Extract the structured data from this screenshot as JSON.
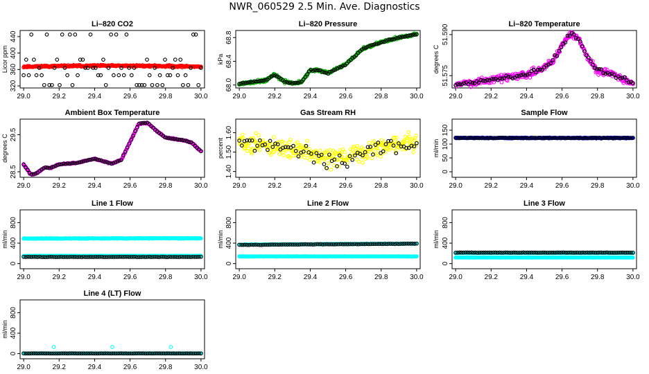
{
  "page": {
    "title": "NWR_060529  2.5 Min. Ave. Diagnostics"
  },
  "chart_data": [
    {
      "type": "scatter",
      "title": "Li–820 CO2",
      "ylabel": "Licor ppm",
      "xlim": [
        28.98,
        30.02
      ],
      "ylim": [
        315,
        455
      ],
      "xticks": [
        "29.0",
        "29.2",
        "29.4",
        "29.6",
        "29.8",
        "30.0"
      ],
      "yticks": [
        "320",
        "360",
        "400",
        "440"
      ],
      "series": [
        {
          "color": "#ff0000",
          "gen": {
            "kind": "band",
            "n": 320,
            "y0": 367,
            "y1": 367,
            "noise": 2,
            "seed": 11,
            "hump": 2
          }
        },
        {
          "color": "#000000",
          "gen": {
            "kind": "levels",
            "n": 70,
            "levels": [
              322,
              346,
              364,
              384,
              445
            ],
            "seed": 5
          }
        }
      ]
    },
    {
      "type": "scatter",
      "title": "Li–820 Pressure",
      "ylabel": "kPa",
      "xlim": [
        28.98,
        30.02
      ],
      "ylim": [
        67.95,
        68.92
      ],
      "xticks": [
        "29.0",
        "29.2",
        "29.4",
        "29.6",
        "29.8",
        "30.0"
      ],
      "yticks": [
        "68.0",
        "68.4",
        "68.8"
      ],
      "series": [
        {
          "color": "#00bb00",
          "gen": {
            "kind": "path",
            "n": 340,
            "pts": [
              [
                29.0,
                68.02
              ],
              [
                29.15,
                68.08
              ],
              [
                29.2,
                68.18
              ],
              [
                29.25,
                68.06
              ],
              [
                29.3,
                68.03
              ],
              [
                29.35,
                68.05
              ],
              [
                29.4,
                68.25
              ],
              [
                29.45,
                68.25
              ],
              [
                29.5,
                68.2
              ],
              [
                29.6,
                68.35
              ],
              [
                29.7,
                68.62
              ],
              [
                29.8,
                68.72
              ],
              [
                29.9,
                68.8
              ],
              [
                30.0,
                68.86
              ]
            ],
            "noise": 0.02,
            "seed": 21
          }
        },
        {
          "color": "#000000",
          "gen": {
            "kind": "path",
            "n": 95,
            "pts": [
              [
                29.0,
                68.02
              ],
              [
                29.15,
                68.08
              ],
              [
                29.2,
                68.18
              ],
              [
                29.25,
                68.06
              ],
              [
                29.3,
                68.03
              ],
              [
                29.35,
                68.05
              ],
              [
                29.4,
                68.25
              ],
              [
                29.45,
                68.25
              ],
              [
                29.5,
                68.2
              ],
              [
                29.6,
                68.35
              ],
              [
                29.7,
                68.62
              ],
              [
                29.8,
                68.72
              ],
              [
                29.9,
                68.8
              ],
              [
                30.0,
                68.86
              ]
            ],
            "noise": 0.01,
            "seed": 22
          }
        }
      ]
    },
    {
      "type": "scatter",
      "title": "Li–820 Temperature",
      "ylabel": "degrees C",
      "xlim": [
        28.98,
        30.02
      ],
      "ylim": [
        51.5705,
        51.5915
      ],
      "xticks": [
        "29.0",
        "29.2",
        "29.4",
        "29.6",
        "29.8",
        "30.0"
      ],
      "yticks": [
        "51.575",
        "51.590"
      ],
      "series": [
        {
          "color": "#ff00ff",
          "gen": {
            "kind": "path",
            "n": 340,
            "pts": [
              [
                29.0,
                51.5715
              ],
              [
                29.2,
                51.5735
              ],
              [
                29.4,
                51.5755
              ],
              [
                29.5,
                51.578
              ],
              [
                29.55,
                51.5805
              ],
              [
                29.6,
                51.586
              ],
              [
                29.65,
                51.5905
              ],
              [
                29.7,
                51.588
              ],
              [
                29.75,
                51.581
              ],
              [
                29.8,
                51.577
              ],
              [
                29.9,
                51.575
              ],
              [
                30.0,
                51.572
              ]
            ],
            "noise": 0.0012,
            "seed": 31
          }
        },
        {
          "color": "#000000",
          "gen": {
            "kind": "path",
            "n": 85,
            "pts": [
              [
                29.0,
                51.5715
              ],
              [
                29.2,
                51.5735
              ],
              [
                29.4,
                51.5755
              ],
              [
                29.5,
                51.578
              ],
              [
                29.55,
                51.5805
              ],
              [
                29.6,
                51.586
              ],
              [
                29.65,
                51.5905
              ],
              [
                29.7,
                51.588
              ],
              [
                29.75,
                51.581
              ],
              [
                29.8,
                51.577
              ],
              [
                29.9,
                51.575
              ],
              [
                30.0,
                51.572
              ]
            ],
            "noise": 0.0008,
            "seed": 32
          }
        }
      ]
    },
    {
      "type": "scatter",
      "title": "Ambient Box Temperature",
      "ylabel": "degrees C",
      "xlim": [
        28.98,
        30.02
      ],
      "ylim": [
        28.35,
        29.92
      ],
      "xticks": [
        "29.0",
        "29.2",
        "29.4",
        "29.6",
        "29.8",
        "30.0"
      ],
      "yticks": [
        "28.5",
        "29.5"
      ],
      "series": [
        {
          "color": "#ff00ff",
          "gen": {
            "kind": "path",
            "n": 340,
            "pts": [
              [
                29.0,
                28.7
              ],
              [
                29.04,
                28.42
              ],
              [
                29.07,
                28.45
              ],
              [
                29.12,
                28.62
              ],
              [
                29.15,
                28.6
              ],
              [
                29.2,
                28.7
              ],
              [
                29.3,
                28.74
              ],
              [
                29.4,
                28.85
              ],
              [
                29.45,
                28.78
              ],
              [
                29.5,
                28.72
              ],
              [
                29.55,
                28.82
              ],
              [
                29.6,
                29.3
              ],
              [
                29.65,
                29.8
              ],
              [
                29.7,
                29.82
              ],
              [
                29.75,
                29.6
              ],
              [
                29.8,
                29.42
              ],
              [
                29.9,
                29.35
              ],
              [
                29.95,
                29.28
              ],
              [
                30.0,
                29.05
              ]
            ],
            "noise": 0.015,
            "seed": 41
          }
        },
        {
          "color": "#000000",
          "gen": {
            "kind": "path",
            "n": 90,
            "pts": [
              [
                29.0,
                28.7
              ],
              [
                29.04,
                28.42
              ],
              [
                29.07,
                28.45
              ],
              [
                29.12,
                28.62
              ],
              [
                29.15,
                28.6
              ],
              [
                29.2,
                28.7
              ],
              [
                29.3,
                28.74
              ],
              [
                29.4,
                28.85
              ],
              [
                29.45,
                28.78
              ],
              [
                29.5,
                28.72
              ],
              [
                29.55,
                28.82
              ],
              [
                29.6,
                29.3
              ],
              [
                29.65,
                29.8
              ],
              [
                29.7,
                29.82
              ],
              [
                29.75,
                29.6
              ],
              [
                29.8,
                29.42
              ],
              [
                29.9,
                29.35
              ],
              [
                29.95,
                29.28
              ],
              [
                30.0,
                29.05
              ]
            ],
            "noise": 0.008,
            "seed": 42
          }
        }
      ]
    },
    {
      "type": "scatter",
      "title": "Gas Stream RH",
      "ylabel": "percent",
      "xlim": [
        28.98,
        30.02
      ],
      "ylim": [
        1.37,
        1.67
      ],
      "xticks": [
        "29.0",
        "29.2",
        "29.4",
        "29.6",
        "29.8",
        "30.0"
      ],
      "yticks": [
        "1.40",
        "1.50",
        "1.60"
      ],
      "series": [
        {
          "color": "#ffff00",
          "gen": {
            "kind": "path",
            "n": 330,
            "pts": [
              [
                29.0,
                1.55
              ],
              [
                29.2,
                1.53
              ],
              [
                29.4,
                1.5
              ],
              [
                29.5,
                1.46
              ],
              [
                29.6,
                1.47
              ],
              [
                29.8,
                1.53
              ],
              [
                30.0,
                1.55
              ]
            ],
            "noise": 0.045,
            "seed": 51
          }
        },
        {
          "color": "#000000",
          "gen": {
            "kind": "path",
            "n": 70,
            "pts": [
              [
                29.0,
                1.55
              ],
              [
                29.2,
                1.53
              ],
              [
                29.4,
                1.5
              ],
              [
                29.5,
                1.46
              ],
              [
                29.6,
                1.47
              ],
              [
                29.8,
                1.53
              ],
              [
                30.0,
                1.55
              ]
            ],
            "noise": 0.04,
            "seed": 52
          }
        }
      ]
    },
    {
      "type": "scatter",
      "title": "Sample Flow",
      "ylabel": "ml/min",
      "xlim": [
        28.98,
        30.02
      ],
      "ylim": [
        -20,
        190
      ],
      "xticks": [
        "29.0",
        "29.2",
        "29.4",
        "29.6",
        "29.8",
        "30.0"
      ],
      "yticks": [
        "0",
        "50",
        "100",
        "150"
      ],
      "series": [
        {
          "color": "#0000ff",
          "gen": {
            "kind": "band",
            "n": 320,
            "y0": 122,
            "y1": 122,
            "noise": 1.5,
            "seed": 61,
            "hump": 0
          }
        },
        {
          "color": "#000000",
          "gen": {
            "kind": "band",
            "n": 90,
            "y0": 122,
            "y1": 122,
            "noise": 1,
            "seed": 62,
            "hump": 0
          }
        }
      ]
    },
    {
      "type": "scatter",
      "title": "Line 1 Flow",
      "ylabel": "ml/min",
      "xlim": [
        28.98,
        30.02
      ],
      "ylim": [
        -100,
        1050
      ],
      "xticks": [
        "29.0",
        "29.2",
        "29.4",
        "29.6",
        "29.8",
        "30.0"
      ],
      "yticks": [
        "0",
        "400",
        "800"
      ],
      "series": [
        {
          "color": "#00ffff",
          "gen": {
            "kind": "band",
            "n": 320,
            "y0": 490,
            "y1": 495,
            "noise": 6,
            "seed": 71,
            "hump": 0
          }
        },
        {
          "color": "#00ffff",
          "gen": {
            "kind": "band",
            "n": 320,
            "y0": 150,
            "y1": 150,
            "noise": 4,
            "seed": 72,
            "hump": 0
          }
        },
        {
          "color": "#000000",
          "gen": {
            "kind": "band",
            "n": 90,
            "y0": 130,
            "y1": 130,
            "noise": 3,
            "seed": 73,
            "hump": 0
          }
        }
      ]
    },
    {
      "type": "scatter",
      "title": "Line 2 Flow",
      "ylabel": "ml/min",
      "xlim": [
        28.98,
        30.02
      ],
      "ylim": [
        -100,
        1050
      ],
      "xticks": [
        "29.0",
        "29.2",
        "29.4",
        "29.6",
        "29.8",
        "30.0"
      ],
      "yticks": [
        "0",
        "400",
        "800"
      ],
      "series": [
        {
          "color": "#00ffff",
          "gen": {
            "kind": "band",
            "n": 320,
            "y0": 370,
            "y1": 390,
            "noise": 5,
            "seed": 81,
            "hump": 0
          }
        },
        {
          "color": "#00ffff",
          "gen": {
            "kind": "band",
            "n": 320,
            "y0": 140,
            "y1": 140,
            "noise": 3,
            "seed": 82,
            "hump": 0
          }
        },
        {
          "color": "#000000",
          "gen": {
            "kind": "band",
            "n": 90,
            "y0": 365,
            "y1": 390,
            "noise": 4,
            "seed": 83,
            "hump": 0
          }
        }
      ]
    },
    {
      "type": "scatter",
      "title": "Line 3 Flow",
      "ylabel": "ml/min",
      "xlim": [
        28.98,
        30.02
      ],
      "ylim": [
        -100,
        1050
      ],
      "xticks": [
        "29.0",
        "29.2",
        "29.4",
        "29.6",
        "29.8",
        "30.0"
      ],
      "yticks": [
        "0",
        "400",
        "800"
      ],
      "series": [
        {
          "color": "#00ffff",
          "gen": {
            "kind": "band",
            "n": 320,
            "y0": 210,
            "y1": 210,
            "noise": 4,
            "seed": 91,
            "hump": 0
          }
        },
        {
          "color": "#00ffff",
          "gen": {
            "kind": "band",
            "n": 320,
            "y0": 120,
            "y1": 120,
            "noise": 3,
            "seed": 92,
            "hump": 0
          }
        },
        {
          "color": "#000000",
          "gen": {
            "kind": "band",
            "n": 90,
            "y0": 215,
            "y1": 215,
            "noise": 3,
            "seed": 93,
            "hump": 0
          }
        }
      ]
    },
    {
      "type": "scatter",
      "title": "Line 4 (LT) Flow",
      "ylabel": "ml/min",
      "xlim": [
        28.98,
        30.02
      ],
      "ylim": [
        -100,
        1050
      ],
      "xticks": [
        "29.0",
        "29.2",
        "29.4",
        "29.6",
        "29.8",
        "30.0"
      ],
      "yticks": [
        "0",
        "400",
        "800"
      ],
      "series": [
        {
          "color": "#00ffff",
          "gen": {
            "kind": "band",
            "n": 320,
            "y0": 5,
            "y1": 5,
            "noise": 2,
            "seed": 101,
            "hump": 0
          }
        },
        {
          "color": "#000000",
          "gen": {
            "kind": "band",
            "n": 90,
            "y0": 5,
            "y1": 5,
            "noise": 1,
            "seed": 102,
            "hump": 0
          }
        },
        {
          "color": "#00ffff",
          "points": [
            [
              29.17,
              130
            ],
            [
              29.5,
              130
            ],
            [
              29.83,
              130
            ]
          ]
        }
      ]
    }
  ]
}
